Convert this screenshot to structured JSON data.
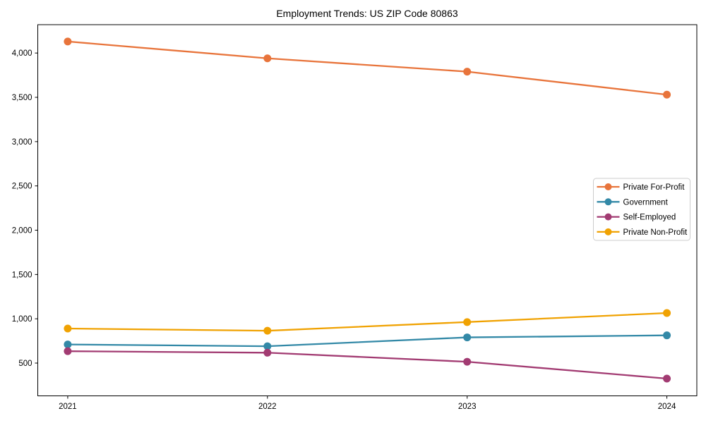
{
  "chart_data": {
    "type": "line",
    "title": "Employment Trends: US ZIP Code 80863",
    "xlabel": "",
    "ylabel": "",
    "x": [
      2021,
      2022,
      2023,
      2024
    ],
    "xticks": [
      "2021",
      "2022",
      "2023",
      "2024"
    ],
    "yticks": [
      500,
      1000,
      1500,
      2000,
      2500,
      3000,
      3500,
      4000
    ],
    "xlim": [
      2020.85,
      2024.15
    ],
    "ylim": [
      130,
      4320
    ],
    "grid": false,
    "legend_position": "center-right",
    "marker": "circle",
    "series": [
      {
        "name": "Private For-Profit",
        "color": "#E8743B",
        "values": [
          4130,
          3940,
          3790,
          3530
        ]
      },
      {
        "name": "Government",
        "color": "#3389A7",
        "values": [
          710,
          690,
          790,
          813
        ]
      },
      {
        "name": "Self-Employed",
        "color": "#A23B72",
        "values": [
          634,
          617,
          515,
          325
        ]
      },
      {
        "name": "Private Non-Profit",
        "color": "#F0A202",
        "values": [
          890,
          865,
          963,
          1065
        ]
      }
    ],
    "axis_color": "#000000",
    "legend_border_color": "#cccccc",
    "legend_background": "#ffffff"
  }
}
